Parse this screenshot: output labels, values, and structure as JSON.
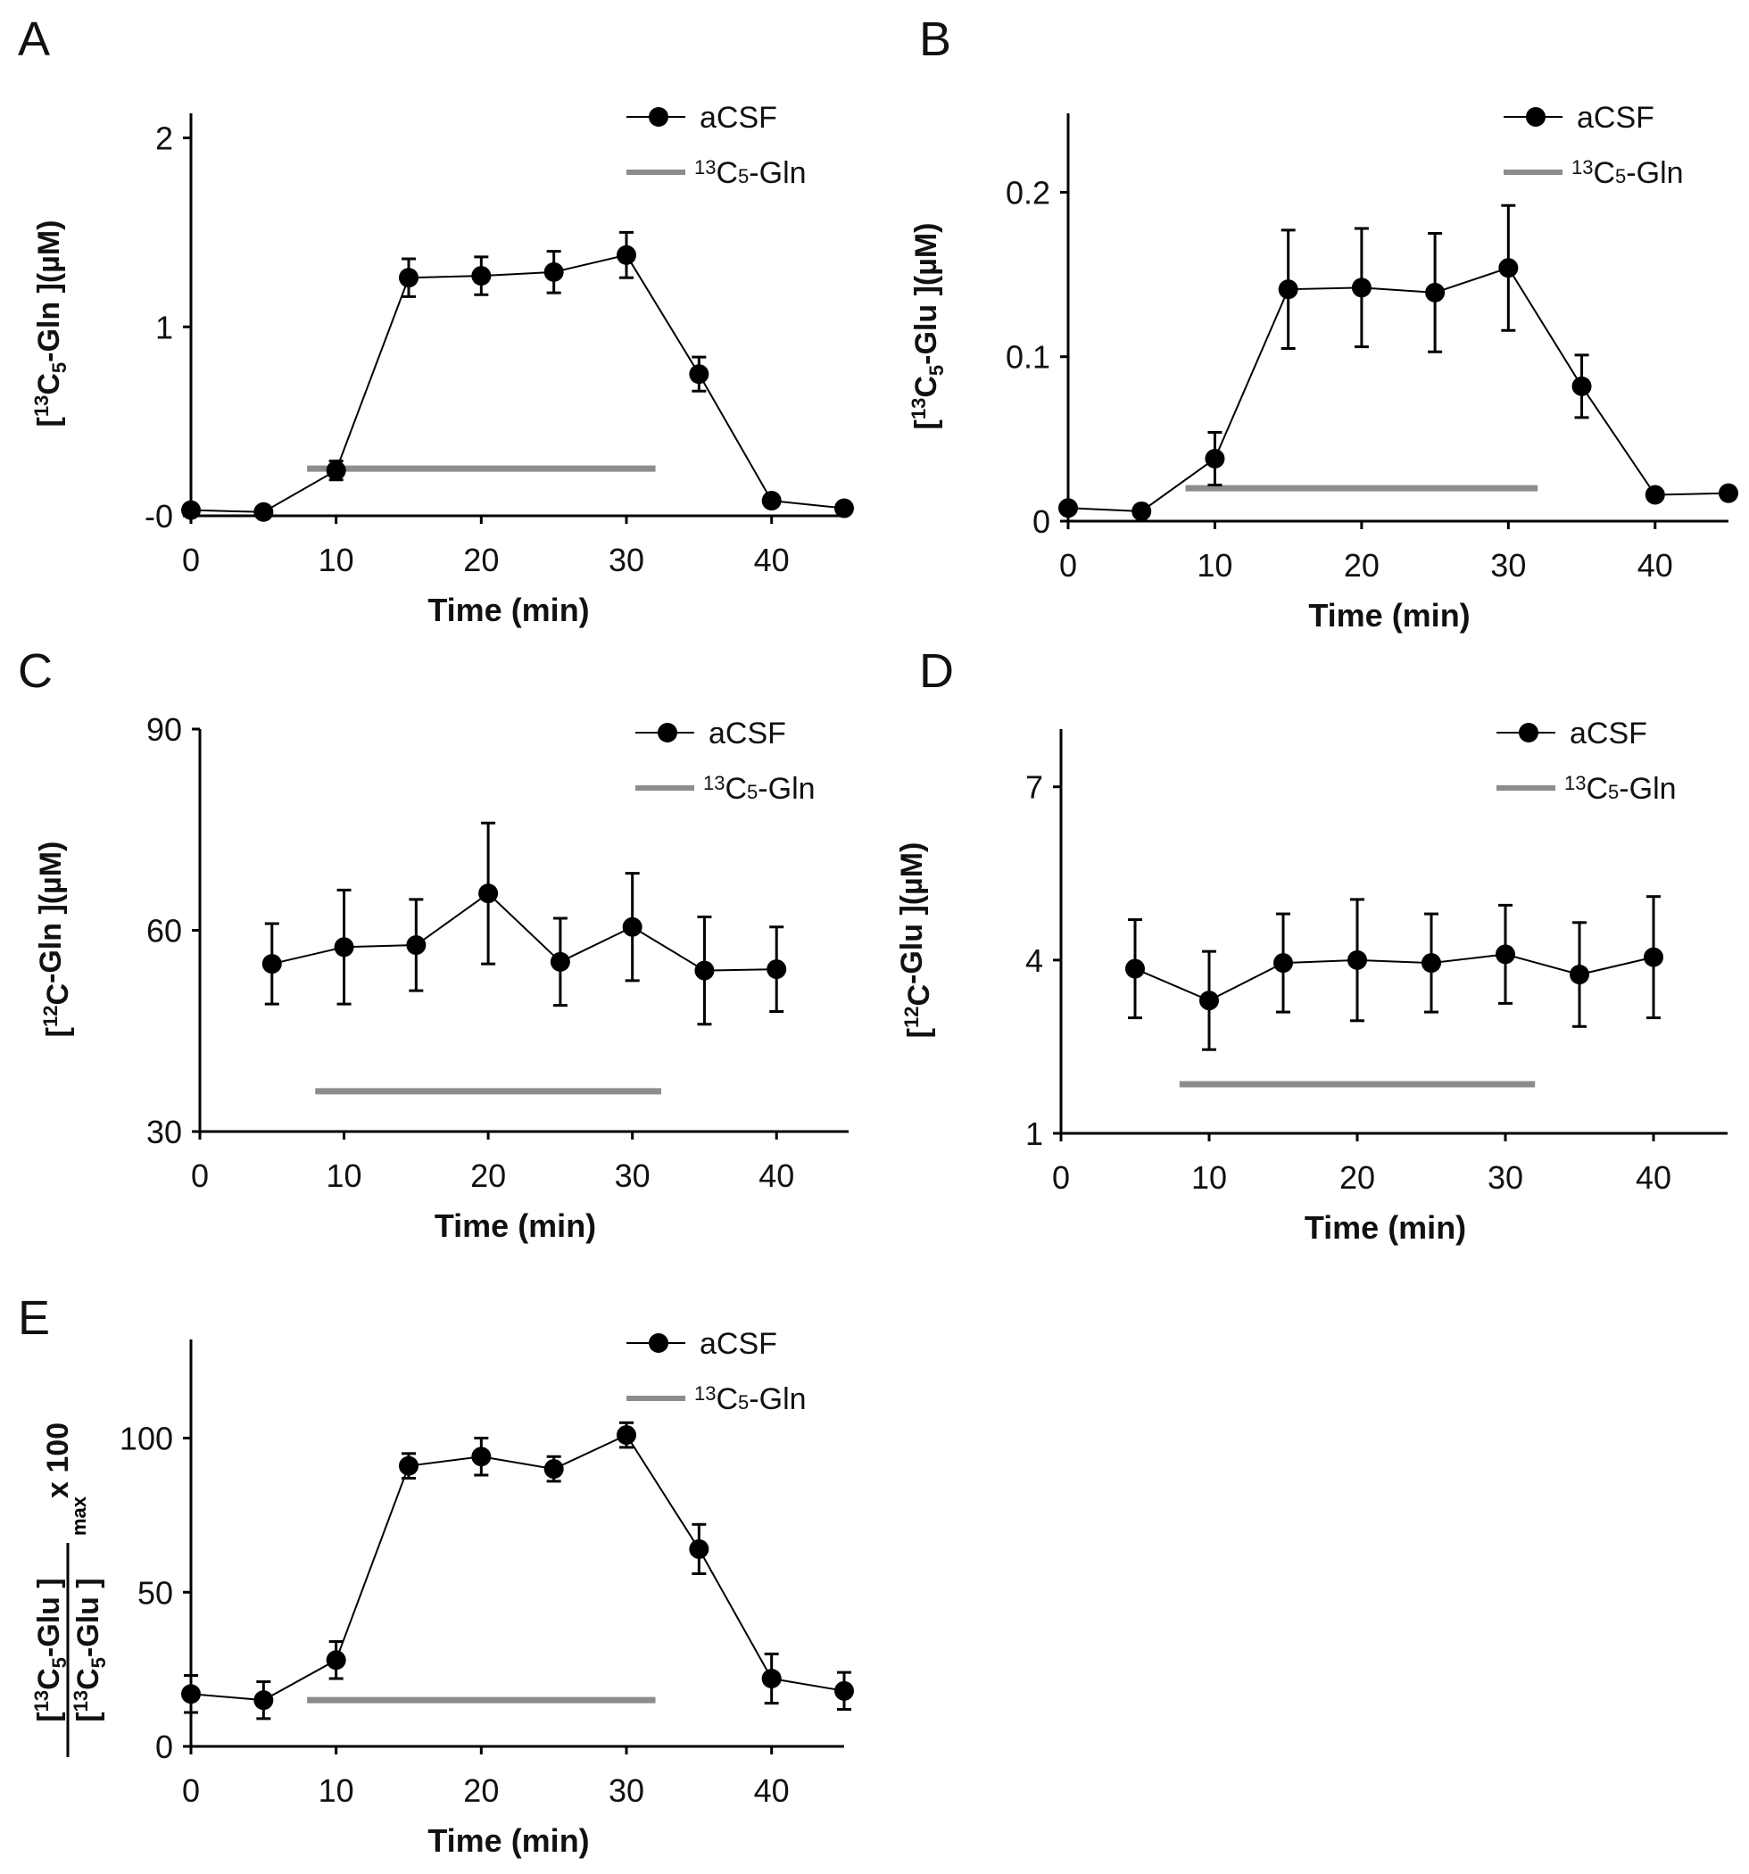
{
  "colors": {
    "series": "#000000",
    "treatment_bar": "#8c8c8c"
  },
  "chart_data": [
    {
      "type": "line",
      "panel": "A",
      "title": "",
      "xlabel": "Time (min)",
      "ylabel": [
        "[",
        "13",
        "C",
        "5",
        "-Gln ](µM)"
      ],
      "x": [
        0,
        5,
        10,
        15,
        20,
        25,
        30,
        35,
        40,
        45
      ],
      "series": [
        {
          "name": "aCSF",
          "values": [
            0.03,
            0.02,
            0.24,
            1.26,
            1.27,
            1.29,
            1.38,
            0.75,
            0.08,
            0.04
          ],
          "errors": [
            0,
            0,
            0.05,
            0.1,
            0.1,
            0.11,
            0.12,
            0.09,
            0,
            0
          ]
        }
      ],
      "treatment": {
        "name": "13C5-Gln",
        "label_sup": "13",
        "label_main": "C",
        "label_sub": "5",
        "label_end": "-Gln",
        "x_range": [
          8,
          32
        ],
        "y": 0.25
      },
      "xlim": [
        0,
        45
      ],
      "ylim": [
        0,
        2.13
      ],
      "xticks": [
        0,
        10,
        20,
        30,
        40
      ],
      "xtick_labels": [
        "0",
        "10",
        "20",
        "30",
        "40"
      ],
      "yticks": [
        0,
        1,
        2
      ],
      "ytick_labels": [
        "-0",
        "1",
        "2"
      ],
      "legend": "top-right"
    },
    {
      "type": "line",
      "panel": "B",
      "xlabel": "Time (min)",
      "ylabel": [
        "[",
        "13",
        "C",
        "5",
        "-Glu ](µM)"
      ],
      "x": [
        0,
        5,
        10,
        15,
        20,
        25,
        30,
        35,
        40,
        45
      ],
      "series": [
        {
          "name": "aCSF",
          "values": [
            0.008,
            0.006,
            0.038,
            0.141,
            0.142,
            0.139,
            0.154,
            0.082,
            0.016,
            0.017
          ],
          "errors": [
            0,
            0,
            0.016,
            0.036,
            0.036,
            0.036,
            0.038,
            0.019,
            0.003,
            0
          ]
        }
      ],
      "treatment": {
        "name": "13C5-Gln",
        "label_sup": "13",
        "label_main": "C",
        "label_sub": "5",
        "label_end": "-Gln",
        "x_range": [
          8,
          32
        ],
        "y": 0.02
      },
      "xlim": [
        0,
        45
      ],
      "ylim": [
        0,
        0.248
      ],
      "xticks": [
        0,
        10,
        20,
        30,
        40
      ],
      "xtick_labels": [
        "0",
        "10",
        "20",
        "30",
        "40"
      ],
      "yticks": [
        0,
        0.1,
        0.2
      ],
      "ytick_labels": [
        "0",
        "0.1",
        "0.2"
      ],
      "legend": "top-right"
    },
    {
      "type": "line",
      "panel": "C",
      "xlabel": "Time (min)",
      "ylabel": [
        "[",
        "12",
        "C",
        "",
        "-Gln ](µM)"
      ],
      "x": [
        5,
        10,
        15,
        20,
        25,
        30,
        35,
        40
      ],
      "series": [
        {
          "name": "aCSF",
          "values": [
            55,
            57.5,
            57.8,
            65.5,
            55.3,
            60.5,
            54,
            54.2
          ],
          "errors": [
            6,
            8.5,
            6.8,
            10.5,
            6.5,
            8,
            8,
            6.3
          ]
        }
      ],
      "treatment": {
        "name": "13C5-Gln",
        "label_sup": "13",
        "label_main": "C",
        "label_sub": "5",
        "label_end": "-Gln",
        "x_range": [
          8,
          32
        ],
        "y": 36
      },
      "xlim": [
        0,
        45
      ],
      "ylim": [
        30,
        90
      ],
      "xticks": [
        0,
        10,
        20,
        30,
        40
      ],
      "xtick_labels": [
        "0",
        "10",
        "20",
        "30",
        "40"
      ],
      "yticks": [
        30,
        60,
        90
      ],
      "ytick_labels": [
        "30",
        "60",
        "90"
      ],
      "legend": "top-right"
    },
    {
      "type": "line",
      "panel": "D",
      "xlabel": "Time (min)",
      "ylabel": [
        "[",
        "12",
        "C",
        "",
        "-Glu ](µM)"
      ],
      "x": [
        5,
        10,
        15,
        20,
        25,
        30,
        35,
        40
      ],
      "series": [
        {
          "name": "aCSF",
          "values": [
            3.85,
            3.3,
            3.95,
            4.0,
            3.95,
            4.1,
            3.75,
            4.05
          ],
          "errors": [
            0.85,
            0.85,
            0.85,
            1.05,
            0.85,
            0.85,
            0.9,
            1.05
          ]
        }
      ],
      "treatment": {
        "name": "13C5-Gln",
        "label_sup": "13",
        "label_main": "C",
        "label_sub": "5",
        "label_end": "-Gln",
        "x_range": [
          8,
          32
        ],
        "y": 1.85
      },
      "xlim": [
        0,
        45
      ],
      "ylim": [
        1,
        8
      ],
      "xticks": [
        0,
        10,
        20,
        30,
        40
      ],
      "xtick_labels": [
        "0",
        "10",
        "20",
        "30",
        "40"
      ],
      "yticks": [
        1,
        4,
        7
      ],
      "ytick_labels": [
        "1",
        "4",
        "7"
      ],
      "legend": "top-right"
    },
    {
      "type": "line",
      "panel": "E",
      "xlabel": "Time (min)",
      "ylabel_fraction": {
        "num": [
          "[",
          "13",
          "C",
          "5",
          "-Glu ]"
        ],
        "den": [
          "[",
          "13",
          "C",
          "5",
          "-Glu ]"
        ],
        "den_sub": "max",
        "suffix": "x 100"
      },
      "x": [
        0,
        5,
        10,
        15,
        20,
        25,
        30,
        35,
        40,
        45
      ],
      "series": [
        {
          "name": "aCSF",
          "values": [
            17,
            15,
            28,
            91,
            94,
            90,
            101,
            64,
            22,
            18
          ],
          "errors": [
            6,
            6,
            6,
            4,
            6,
            4,
            4,
            8,
            8,
            6
          ]
        }
      ],
      "treatment": {
        "name": "13C5-Gln",
        "label_sup": "13",
        "label_main": "C",
        "label_sub": "5",
        "label_end": "-Gln",
        "x_range": [
          8,
          32
        ],
        "y": 15
      },
      "xlim": [
        0,
        45
      ],
      "ylim": [
        0,
        132
      ],
      "xticks": [
        0,
        10,
        20,
        30,
        40
      ],
      "xtick_labels": [
        "0",
        "10",
        "20",
        "30",
        "40"
      ],
      "yticks": [
        0,
        50,
        100
      ],
      "ytick_labels": [
        "0",
        "50",
        "100"
      ],
      "legend": "top-right"
    }
  ]
}
